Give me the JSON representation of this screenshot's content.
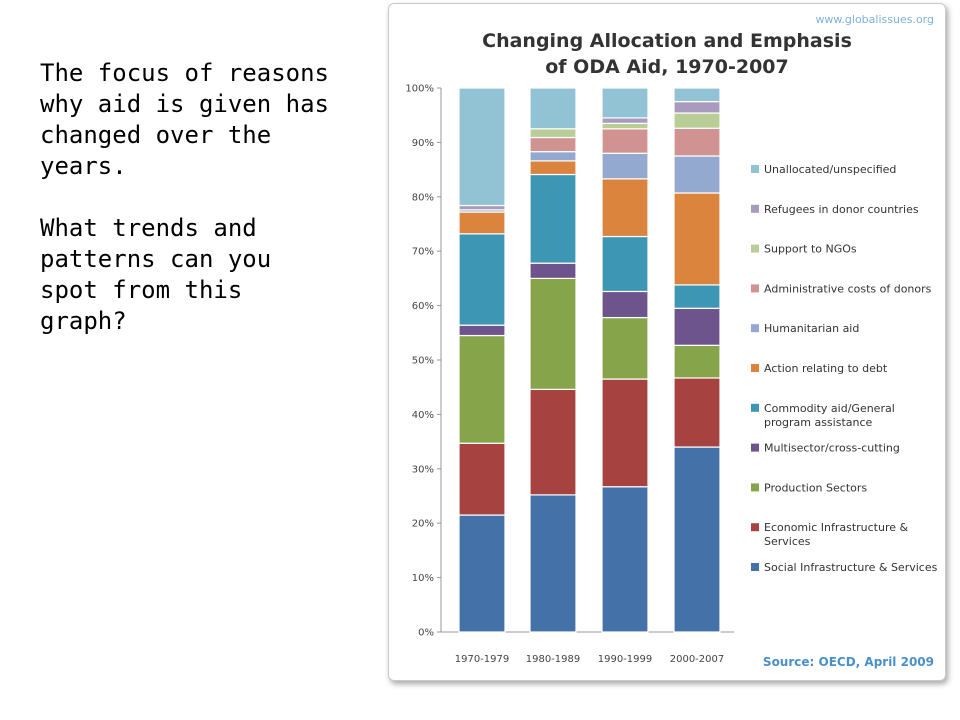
{
  "slide": {
    "paragraph1": "The focus of reasons why aid is given has changed over the years.",
    "paragraph2": "What trends and patterns can you spot from this graph?"
  },
  "chart_data": {
    "type": "bar",
    "stacked": true,
    "title_lines": [
      "Changing Allocation and Emphasis",
      "of ODA Aid, 1970-2007"
    ],
    "website": "www.globalissues.org",
    "source": "Source: OECD, April 2009",
    "ylim": [
      0,
      100
    ],
    "yticks": [
      "0%",
      "10%",
      "20%",
      "30%",
      "40%",
      "50%",
      "60%",
      "70%",
      "80%",
      "90%",
      "100%"
    ],
    "ytick_values": [
      0,
      10,
      20,
      30,
      40,
      50,
      60,
      70,
      80,
      90,
      100
    ],
    "grid": false,
    "legend_position": "right",
    "categories": [
      "1970-1979",
      "1980-1989",
      "1990-1999",
      "2000-2007"
    ],
    "series": [
      {
        "name": "Social Infrastructure & Services",
        "color": "#4472a8",
        "values": [
          21.5,
          25.2,
          26.7,
          34.0
        ]
      },
      {
        "name": "Economic Infrastructure & Services",
        "color": "#a64340",
        "values": [
          13.2,
          19.4,
          19.8,
          12.7
        ]
      },
      {
        "name": "Production Sectors",
        "color": "#86a44a",
        "values": [
          19.8,
          20.4,
          11.3,
          6.0
        ]
      },
      {
        "name": "Multisector/cross-cutting",
        "color": "#6e548d",
        "values": [
          1.9,
          2.8,
          4.8,
          6.8
        ]
      },
      {
        "name": "Commodity aid/General program assistance",
        "color": "#3d96b4",
        "values": [
          16.8,
          16.3,
          10.1,
          4.3
        ]
      },
      {
        "name": "Action relating to debt",
        "color": "#db843d",
        "values": [
          4.0,
          2.5,
          10.6,
          16.9
        ]
      },
      {
        "name": "Humanitarian aid",
        "color": "#93a9cf",
        "values": [
          0.4,
          1.7,
          4.7,
          6.8
        ]
      },
      {
        "name": "Administrative costs of donors",
        "color": "#d19392",
        "values": [
          0.0,
          2.6,
          4.5,
          5.1
        ]
      },
      {
        "name": "Support to NGOs",
        "color": "#b9cd96",
        "values": [
          0.0,
          1.6,
          1.0,
          2.8
        ]
      },
      {
        "name": "Refugees in donor countries",
        "color": "#a99bbd",
        "values": [
          0.8,
          0.0,
          1.0,
          2.1
        ]
      },
      {
        "name": "Unallocated/unspecified",
        "color": "#92c3d4",
        "values": [
          21.6,
          7.5,
          5.5,
          2.5
        ]
      }
    ],
    "legend_entries": [
      {
        "color": "#92c3d4",
        "lines": [
          "Unallocated/unspecified"
        ]
      },
      {
        "color": "#a99bbd",
        "lines": [
          "Refugees in donor countries"
        ]
      },
      {
        "color": "#b9cd96",
        "lines": [
          "Support to NGOs"
        ]
      },
      {
        "color": "#d19392",
        "lines": [
          "Administrative costs of donors"
        ]
      },
      {
        "color": "#93a9cf",
        "lines": [
          "Humanitarian aid"
        ]
      },
      {
        "color": "#db843d",
        "lines": [
          "Action relating to debt"
        ]
      },
      {
        "color": "#3d96b4",
        "lines": [
          "Commodity aid/General",
          "program assistance"
        ]
      },
      {
        "color": "#6e548d",
        "lines": [
          "Multisector/cross-cutting"
        ]
      },
      {
        "color": "#86a44a",
        "lines": [
          "Production Sectors"
        ]
      },
      {
        "color": "#a64340",
        "lines": [
          "Economic Infrastructure &",
          "Services"
        ]
      },
      {
        "color": "#4472a8",
        "lines": [
          "Social Infrastructure & Services"
        ]
      }
    ]
  }
}
